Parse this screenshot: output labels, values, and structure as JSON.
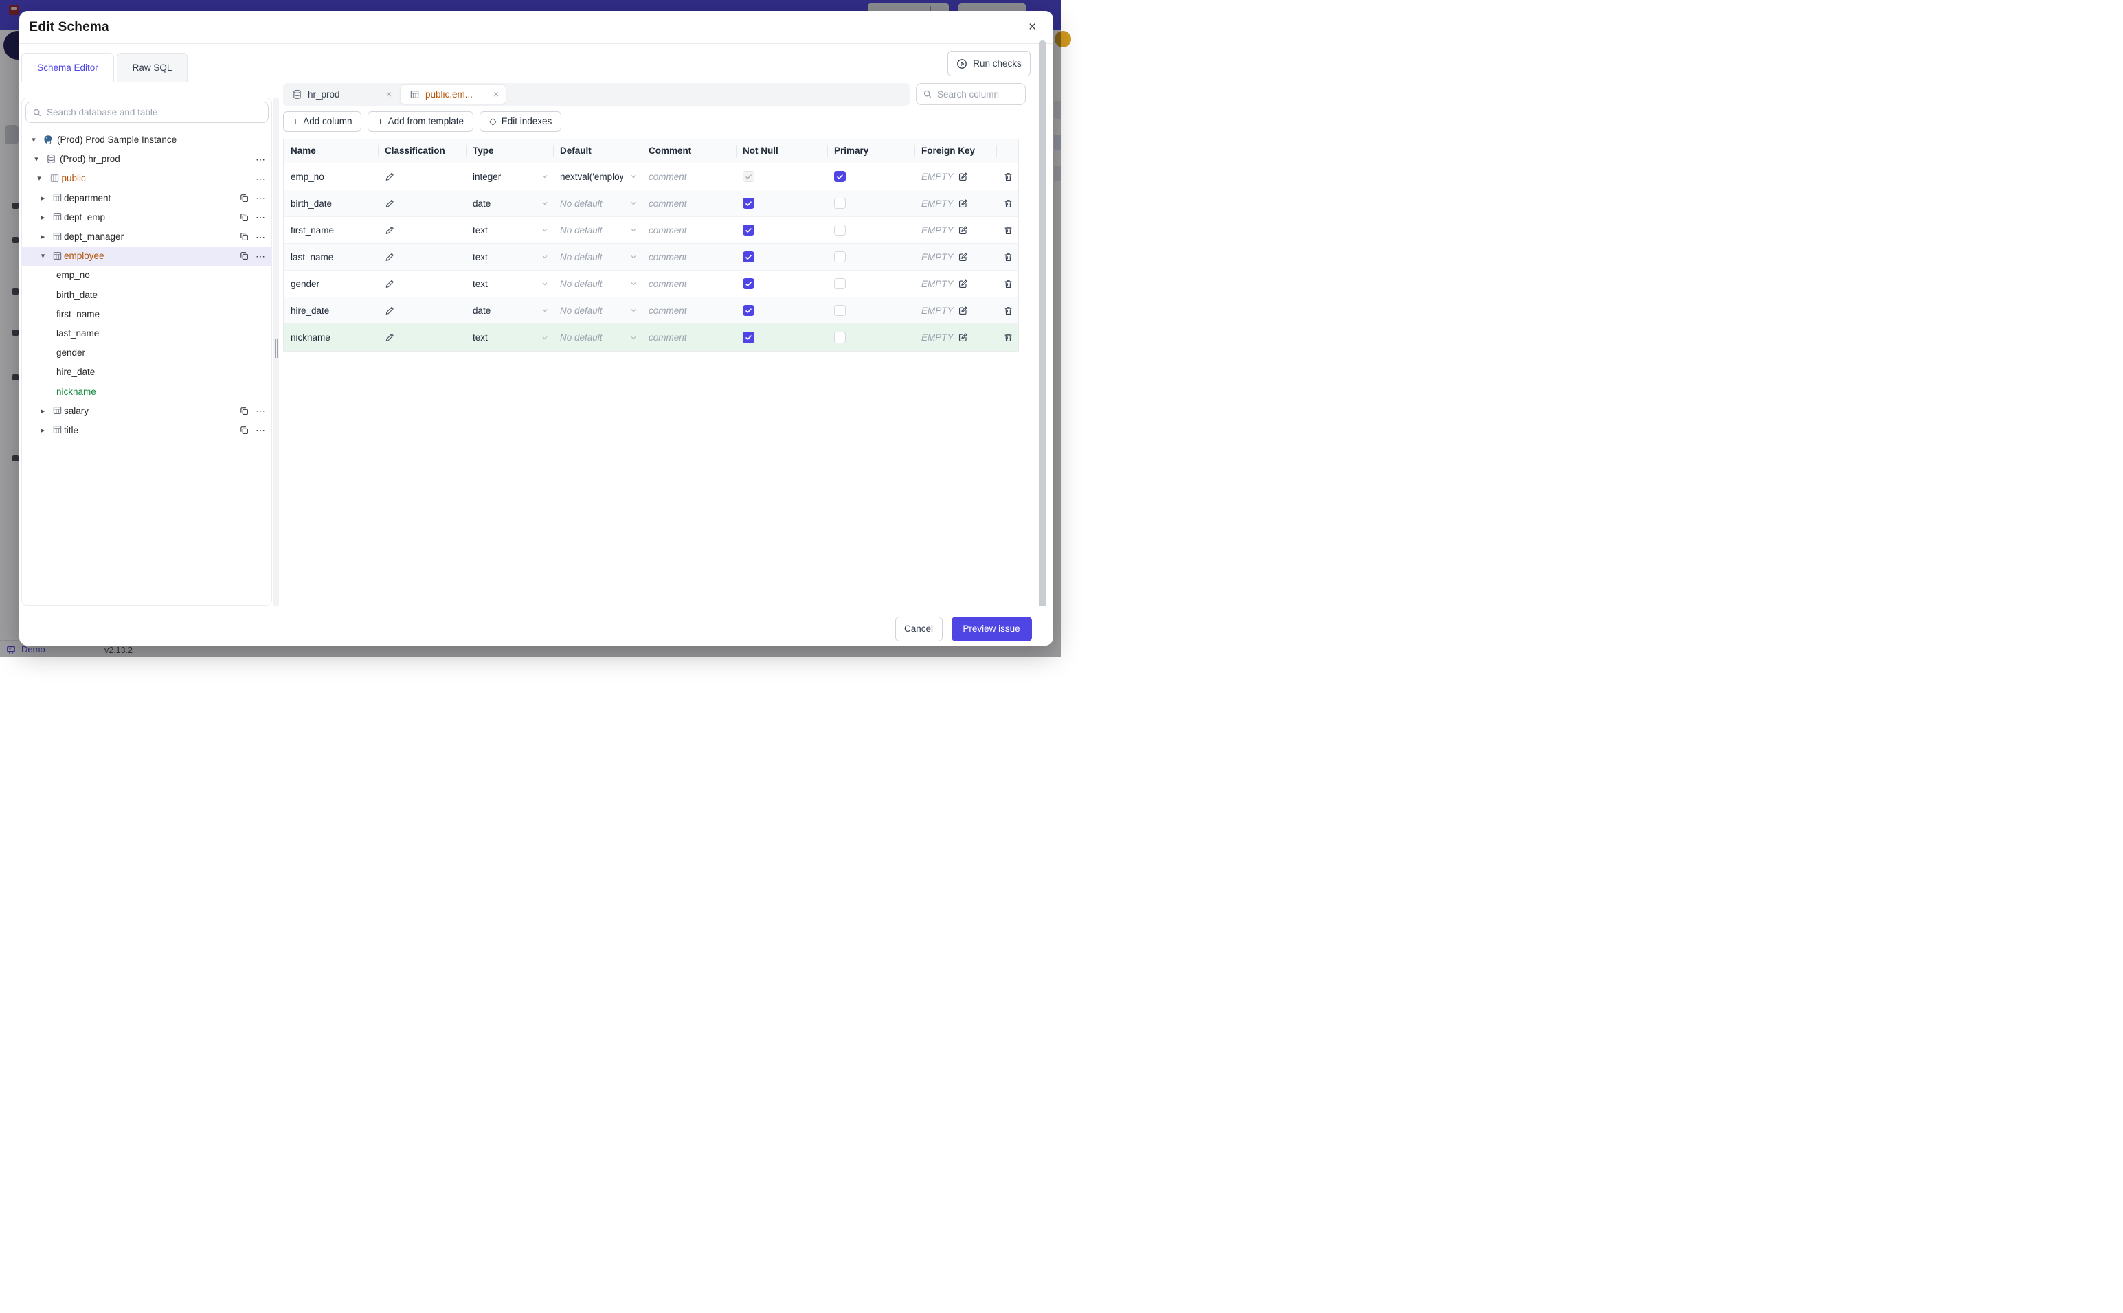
{
  "colors": {
    "accent": "#4f45e4",
    "header_bar": "#4c44d6",
    "modified_orange": "#b45309",
    "new_green": "#178a42",
    "selected_row_bg": "#ecebfa",
    "new_row_bg": "#e7f5ec"
  },
  "modal": {
    "title": "Edit Schema",
    "close_glyph": "×",
    "tabs": [
      {
        "label": "Schema Editor",
        "active": true
      },
      {
        "label": "Raw SQL",
        "active": false
      }
    ],
    "run_checks_label": "Run checks"
  },
  "sidebar": {
    "search_placeholder": "Search database and table",
    "tree": [
      {
        "label": "(Prod) Prod Sample Instance",
        "level": 0,
        "caret": "down",
        "icon": "postgres"
      },
      {
        "label": "(Prod) hr_prod",
        "level": 1,
        "caret": "down",
        "icon": "database",
        "menu": true
      },
      {
        "label": "public",
        "level": 2,
        "caret": "down",
        "icon": "schema",
        "menu": true,
        "color": "modified"
      },
      {
        "label": "department",
        "level": 3,
        "caret": "right",
        "icon": "table",
        "copy": true,
        "menu": true
      },
      {
        "label": "dept_emp",
        "level": 3,
        "caret": "right",
        "icon": "table",
        "copy": true,
        "menu": true
      },
      {
        "label": "dept_manager",
        "level": 3,
        "caret": "right",
        "icon": "table",
        "copy": true,
        "menu": true
      },
      {
        "label": "employee",
        "level": 3,
        "caret": "down",
        "icon": "table",
        "copy": true,
        "menu": true,
        "color": "modified",
        "selected": true
      },
      {
        "label": "emp_no",
        "level": "column"
      },
      {
        "label": "birth_date",
        "level": "column"
      },
      {
        "label": "first_name",
        "level": "column"
      },
      {
        "label": "last_name",
        "level": "column"
      },
      {
        "label": "gender",
        "level": "column"
      },
      {
        "label": "hire_date",
        "level": "column"
      },
      {
        "label": "nickname",
        "level": "column",
        "color": "new"
      },
      {
        "label": "salary",
        "level": 3,
        "caret": "right",
        "icon": "table",
        "copy": true,
        "menu": true
      },
      {
        "label": "title",
        "level": 3,
        "caret": "right",
        "icon": "table",
        "copy": true,
        "menu": true
      }
    ]
  },
  "editor": {
    "tab_bar": [
      {
        "label": "hr_prod",
        "icon": "database",
        "active": false
      },
      {
        "label": "public.em...",
        "icon": "table",
        "active": true,
        "modified": true
      }
    ],
    "close_glyph": "×",
    "search_placeholder": "Search column",
    "toolbar": [
      {
        "glyph": "+",
        "label": "Add column"
      },
      {
        "glyph": "+",
        "label": "Add from template"
      },
      {
        "glyph": "◇",
        "label": "Edit indexes"
      }
    ],
    "table": {
      "headers": [
        "Name",
        "Classification",
        "Type",
        "Default",
        "Comment",
        "Not Null",
        "Primary",
        "Foreign Key",
        ""
      ],
      "comment_placeholder": "comment",
      "no_default_placeholder": "No default",
      "foreign_key_empty": "EMPTY",
      "rows": [
        {
          "name": "emp_no",
          "type": "integer",
          "default_value": "nextval('employ",
          "not_null": true,
          "not_null_disabled": true,
          "primary": true
        },
        {
          "name": "birth_date",
          "type": "date",
          "default_value": "",
          "not_null": true,
          "primary": false
        },
        {
          "name": "first_name",
          "type": "text",
          "default_value": "",
          "not_null": true,
          "primary": false
        },
        {
          "name": "last_name",
          "type": "text",
          "default_value": "",
          "not_null": true,
          "primary": false
        },
        {
          "name": "gender",
          "type": "text",
          "default_value": "",
          "not_null": true,
          "primary": false
        },
        {
          "name": "hire_date",
          "type": "date",
          "default_value": "",
          "not_null": true,
          "primary": false
        },
        {
          "name": "nickname",
          "type": "text",
          "default_value": "",
          "not_null": true,
          "primary": false,
          "state": "new"
        }
      ]
    }
  },
  "footer": {
    "cancel_label": "Cancel",
    "submit_label": "Preview issue"
  },
  "background": {
    "demo_label": "Demo",
    "version": "v2.13.2"
  }
}
